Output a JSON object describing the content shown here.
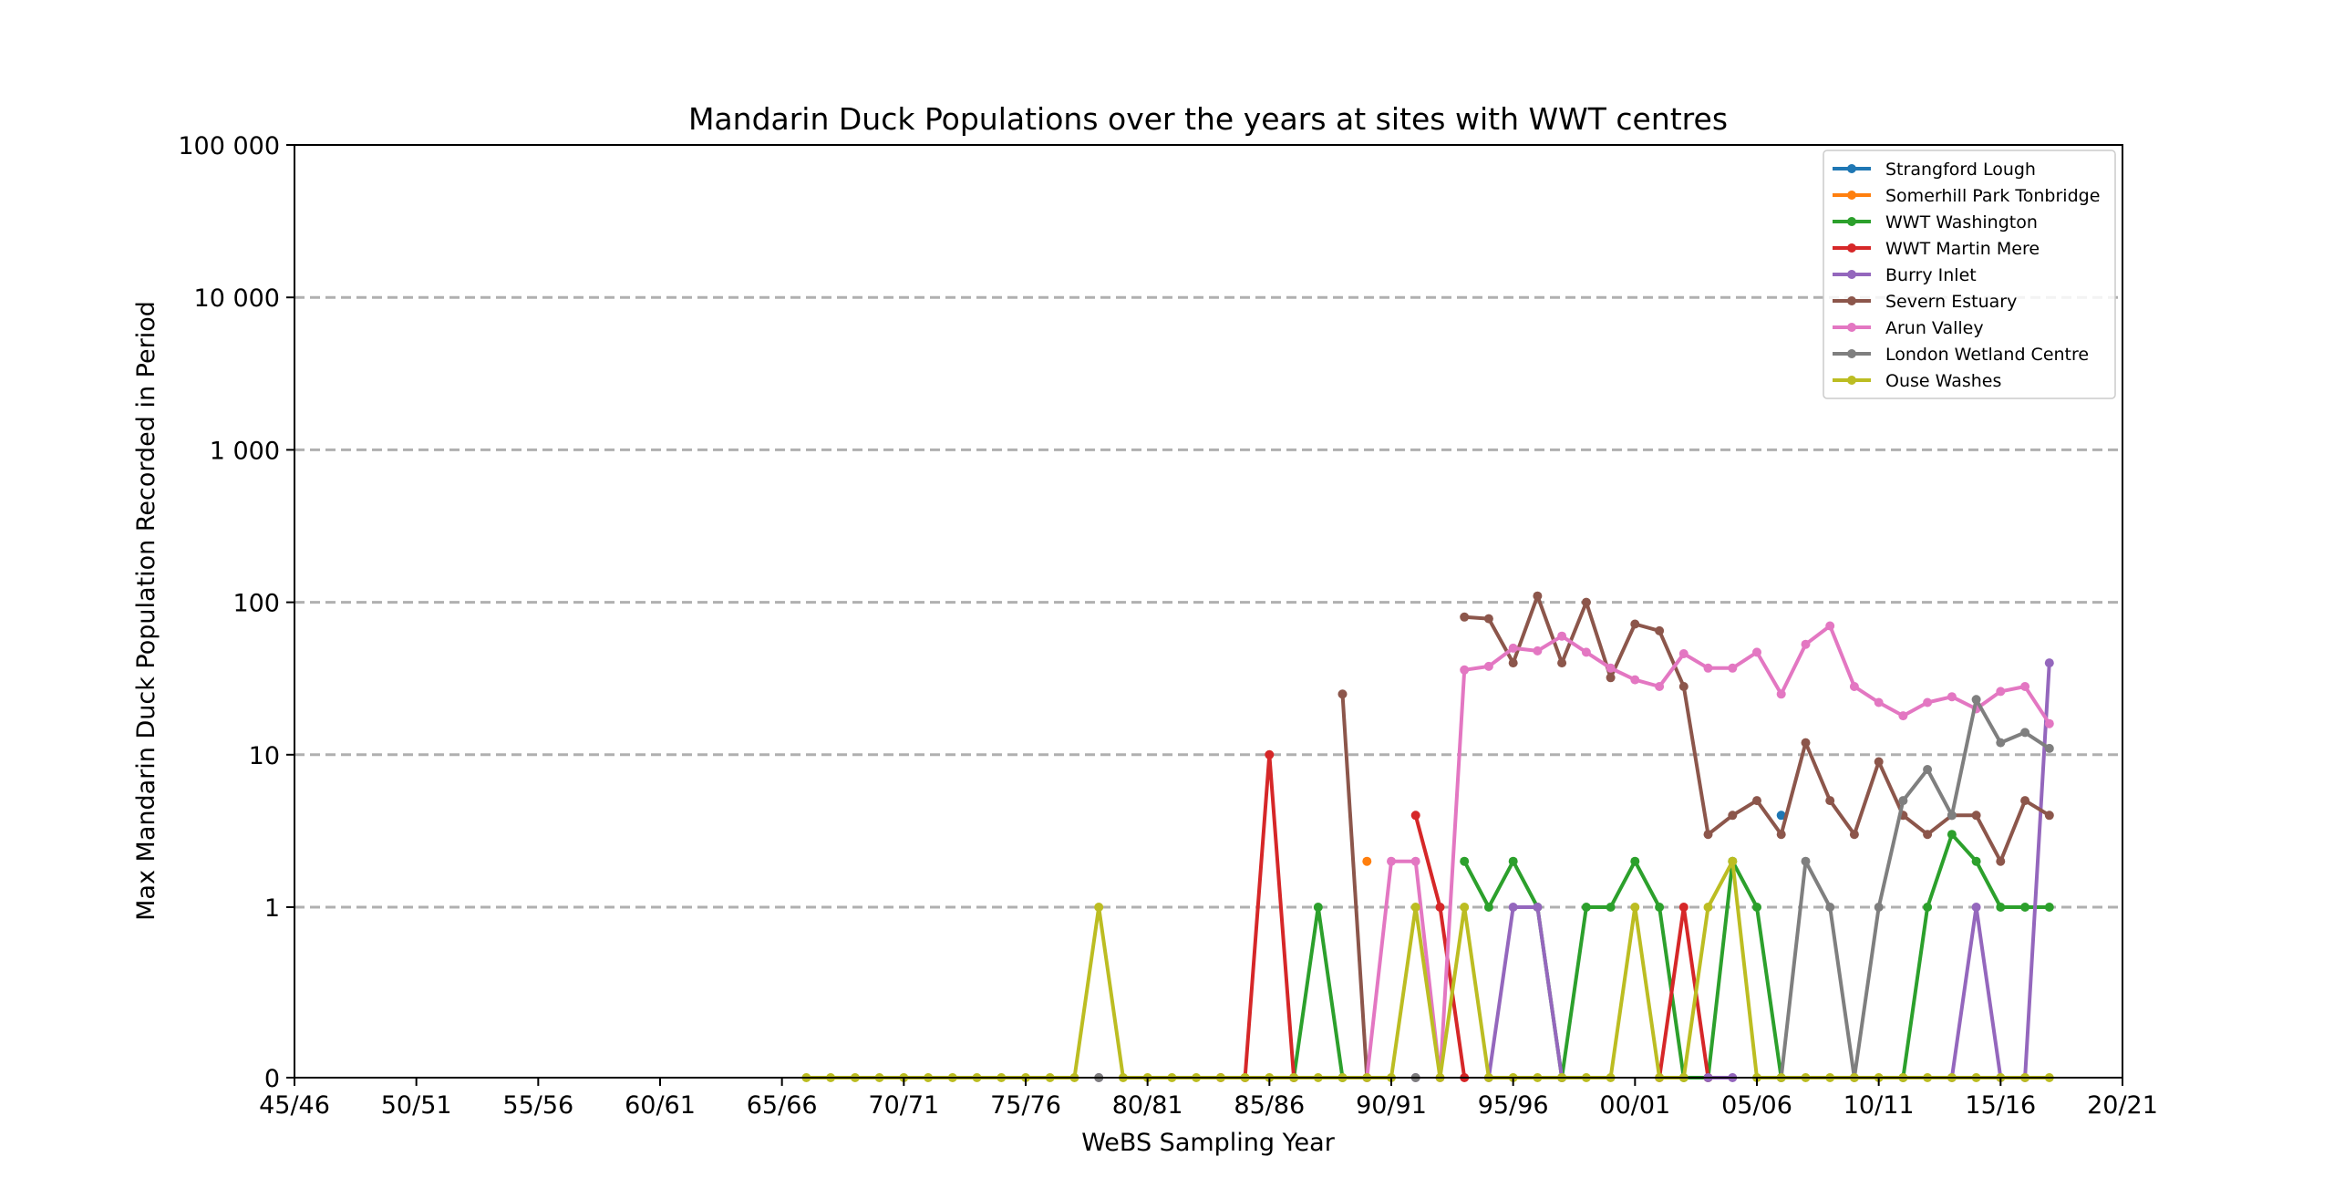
{
  "chart_data": {
    "type": "line",
    "title": "Mandarin Duck Populations over the years at sites with WWT centres",
    "xlabel": "WeBS Sampling Year",
    "ylabel": "Max Mandarin Duck Population Recorded in Period",
    "x_tick_labels": [
      "45/46",
      "50/51",
      "55/56",
      "60/61",
      "65/66",
      "70/71",
      "75/76",
      "80/81",
      "85/86",
      "90/91",
      "95/96",
      "00/01",
      "05/06",
      "10/11",
      "15/16",
      "20/21"
    ],
    "x_tick_values": [
      1945,
      1950,
      1955,
      1960,
      1965,
      1970,
      1975,
      1980,
      1985,
      1990,
      1995,
      2000,
      2005,
      2010,
      2015,
      2020
    ],
    "xlim": [
      1945,
      2020
    ],
    "y_scale": "symlog",
    "y_tick_labels": [
      "0",
      "1",
      "10",
      "100",
      "1 000",
      "10 000",
      "100 000"
    ],
    "y_tick_values": [
      0,
      1,
      10,
      100,
      1000,
      10000,
      100000
    ],
    "ylim": [
      0,
      100000
    ],
    "grid": "horizontal dashed",
    "legend_position": "top-right",
    "x": [
      1966,
      1967,
      1968,
      1969,
      1970,
      1971,
      1972,
      1973,
      1974,
      1975,
      1976,
      1977,
      1978,
      1979,
      1980,
      1981,
      1982,
      1983,
      1984,
      1985,
      1986,
      1987,
      1988,
      1989,
      1990,
      1991,
      1992,
      1993,
      1994,
      1995,
      1996,
      1997,
      1998,
      1999,
      2000,
      2001,
      2002,
      2003,
      2004,
      2005,
      2006,
      2007,
      2008,
      2009,
      2010,
      2011,
      2012,
      2013,
      2014,
      2015,
      2016,
      2017
    ],
    "series": [
      {
        "name": "Strangford Lough",
        "color": "#1f77b4",
        "values": [
          null,
          null,
          null,
          null,
          null,
          null,
          null,
          null,
          null,
          null,
          null,
          null,
          null,
          null,
          null,
          null,
          null,
          null,
          null,
          null,
          null,
          null,
          null,
          null,
          null,
          null,
          null,
          null,
          null,
          null,
          null,
          null,
          null,
          null,
          null,
          null,
          null,
          null,
          null,
          null,
          4,
          null,
          null,
          null,
          null,
          null,
          null,
          null,
          null,
          null,
          null,
          null
        ]
      },
      {
        "name": "Somerhill Park Tonbridge",
        "color": "#ff7f0e",
        "values": [
          null,
          null,
          null,
          null,
          null,
          null,
          null,
          null,
          null,
          null,
          null,
          null,
          null,
          null,
          null,
          null,
          null,
          null,
          null,
          null,
          null,
          null,
          null,
          2,
          null,
          null,
          null,
          null,
          null,
          null,
          null,
          null,
          null,
          null,
          null,
          null,
          null,
          null,
          null,
          null,
          null,
          null,
          null,
          null,
          null,
          null,
          null,
          null,
          null,
          null,
          null,
          null
        ]
      },
      {
        "name": "WWT Washington",
        "color": "#2ca02c",
        "values": [
          null,
          null,
          null,
          null,
          null,
          null,
          null,
          null,
          null,
          null,
          null,
          null,
          null,
          null,
          null,
          null,
          null,
          null,
          null,
          null,
          0,
          1,
          0,
          null,
          null,
          null,
          null,
          2,
          1,
          2,
          1,
          0,
          1,
          1,
          2,
          1,
          0,
          0,
          2,
          1,
          0,
          null,
          null,
          null,
          null,
          0,
          1,
          3,
          2,
          1,
          1,
          1
        ]
      },
      {
        "name": "WWT Martin Mere",
        "color": "#d62728",
        "values": [
          null,
          null,
          null,
          null,
          null,
          null,
          null,
          null,
          null,
          null,
          null,
          null,
          null,
          null,
          null,
          null,
          null,
          0,
          0,
          10,
          0,
          null,
          null,
          null,
          null,
          4,
          1,
          0,
          null,
          null,
          null,
          null,
          null,
          null,
          null,
          0,
          1,
          0,
          null,
          null,
          null,
          null,
          null,
          null,
          null,
          null,
          null,
          null,
          null,
          null,
          null,
          null
        ]
      },
      {
        "name": "Burry Inlet",
        "color": "#9467bd",
        "values": [
          null,
          null,
          null,
          null,
          null,
          null,
          null,
          null,
          null,
          null,
          null,
          null,
          0,
          null,
          null,
          null,
          null,
          null,
          null,
          null,
          null,
          null,
          null,
          null,
          null,
          0,
          null,
          null,
          0,
          1,
          1,
          0,
          null,
          null,
          null,
          null,
          null,
          0,
          0,
          null,
          null,
          null,
          null,
          null,
          null,
          null,
          null,
          0,
          1,
          0,
          0,
          40
        ]
      },
      {
        "name": "Severn Estuary",
        "color": "#8c564b",
        "values": [
          null,
          null,
          null,
          null,
          null,
          null,
          null,
          null,
          null,
          null,
          null,
          null,
          null,
          null,
          null,
          null,
          null,
          null,
          null,
          null,
          null,
          null,
          25,
          0,
          null,
          null,
          null,
          80,
          78,
          40,
          110,
          40,
          100,
          32,
          72,
          65,
          28,
          3,
          4,
          5,
          3,
          12,
          5,
          3,
          9,
          4,
          3,
          4,
          4,
          2,
          5,
          4
        ]
      },
      {
        "name": "Arun Valley",
        "color": "#e377c2",
        "values": [
          null,
          null,
          null,
          null,
          null,
          null,
          null,
          null,
          null,
          null,
          null,
          null,
          null,
          null,
          null,
          null,
          null,
          null,
          null,
          null,
          null,
          null,
          null,
          0,
          2,
          2,
          0,
          36,
          38,
          50,
          48,
          60,
          47,
          37,
          31,
          28,
          46,
          37,
          37,
          47,
          25,
          53,
          70,
          28,
          22,
          18,
          22,
          24,
          20,
          26,
          28,
          16
        ]
      },
      {
        "name": "London Wetland Centre",
        "color": "#7f7f7f",
        "values": [
          null,
          null,
          null,
          null,
          null,
          null,
          null,
          null,
          null,
          null,
          null,
          null,
          0,
          null,
          null,
          null,
          null,
          null,
          null,
          null,
          null,
          null,
          null,
          null,
          null,
          0,
          null,
          null,
          null,
          null,
          null,
          0,
          null,
          null,
          null,
          null,
          null,
          null,
          null,
          null,
          0,
          2,
          1,
          0,
          1,
          5,
          8,
          4,
          23,
          12,
          14,
          11
        ]
      },
      {
        "name": "Ouse Washes",
        "color": "#bcbd22",
        "values": [
          0,
          0,
          0,
          0,
          0,
          0,
          0,
          0,
          0,
          0,
          0,
          0,
          1,
          0,
          0,
          0,
          0,
          0,
          0,
          0,
          0,
          0,
          0,
          0,
          0,
          1,
          0,
          1,
          0,
          0,
          0,
          0,
          0,
          0,
          1,
          0,
          0,
          1,
          2,
          0,
          0,
          0,
          0,
          0,
          0,
          0,
          0,
          0,
          0,
          0,
          0,
          0
        ]
      }
    ]
  }
}
